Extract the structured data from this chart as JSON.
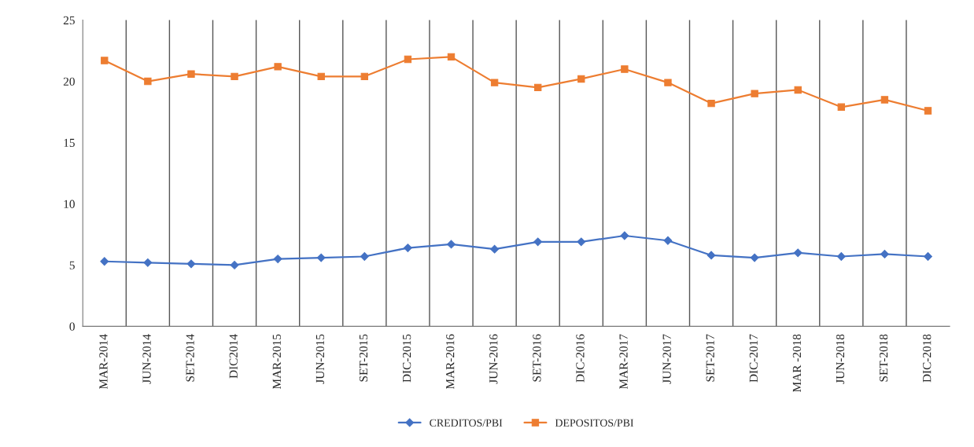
{
  "chart_data": {
    "type": "line",
    "categories": [
      "MAR-2014",
      "JUN-2014",
      "SET-2014",
      "DIC2014",
      "MAR-2015",
      "JUN-2015",
      "SET-2015",
      "DIC-2015",
      "MAR-2016",
      "JUN-2016",
      "SET-2016",
      "DIC-2016",
      "MAR-2017",
      "JUN-2017",
      "SET-2017",
      "DIC-2017",
      "MAR -2018",
      "JUN-2018",
      "SET-2018",
      "DIC-2018"
    ],
    "series": [
      {
        "name": "CREDITOS/PBI",
        "color": "#4472c4",
        "marker": "diamond",
        "values": [
          5.3,
          5.2,
          5.1,
          5.0,
          5.5,
          5.6,
          5.7,
          6.4,
          6.7,
          6.3,
          6.9,
          6.9,
          7.4,
          7.0,
          5.8,
          5.6,
          6.0,
          5.7,
          5.9,
          5.7
        ]
      },
      {
        "name": "DEPOSITOS/PBI",
        "color": "#ed7d31",
        "marker": "square",
        "values": [
          21.7,
          20.0,
          20.6,
          20.4,
          21.2,
          20.4,
          20.4,
          21.8,
          22.0,
          19.9,
          19.5,
          20.2,
          21.0,
          19.9,
          18.2,
          19.0,
          19.3,
          17.9,
          18.5,
          17.6
        ]
      }
    ],
    "ylim": [
      0,
      25
    ],
    "yticks": [
      0,
      5,
      10,
      15,
      20,
      25
    ],
    "grid": "x",
    "legend": "bottom",
    "line_style": "solid"
  }
}
